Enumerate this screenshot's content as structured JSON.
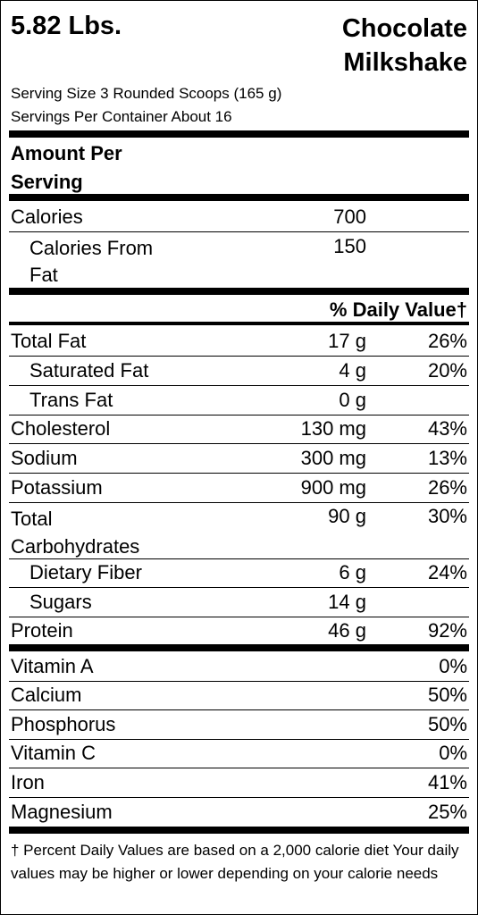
{
  "product": {
    "weight": "5.82 Lbs.",
    "name_line1": "Chocolate",
    "name_line2": "Milkshake"
  },
  "serving": {
    "size": "Serving Size 3 Rounded Scoops (165 g)",
    "per_container": "Servings Per Container About 16"
  },
  "amount_heading_line1": "Amount Per",
  "amount_heading_line2": "Serving",
  "calories": {
    "label": "Calories",
    "value": "700",
    "from_fat_line1": "Calories From",
    "from_fat_line2": "Fat",
    "from_fat_value": "150"
  },
  "daily_value_header": "% Daily Value†",
  "nutrients": [
    {
      "label": "Total Fat",
      "amount": "17 g",
      "dv": "26%"
    },
    {
      "label": "Saturated Fat",
      "amount": "4 g",
      "dv": "20%"
    },
    {
      "label": "Trans Fat",
      "amount": "0 g",
      "dv": ""
    },
    {
      "label": "Cholesterol",
      "amount": "130 mg",
      "dv": "43%"
    },
    {
      "label": "Sodium",
      "amount": "300 mg",
      "dv": "13%"
    },
    {
      "label": "Potassium",
      "amount": "900 mg",
      "dv": "26%"
    },
    {
      "label": "Total",
      "label_line2": "Carbohydrates",
      "amount": "90 g",
      "dv": "30%"
    },
    {
      "label": "Dietary Fiber",
      "amount": "6 g",
      "dv": "24%"
    },
    {
      "label": "Sugars",
      "amount": "14 g",
      "dv": ""
    },
    {
      "label": "Protein",
      "amount": "46 g",
      "dv": "92%"
    }
  ],
  "vitamins": [
    {
      "label": "Vitamin A",
      "dv": "0%"
    },
    {
      "label": "Calcium",
      "dv": "50%"
    },
    {
      "label": "Phosphorus",
      "dv": "50%"
    },
    {
      "label": "Vitamin C",
      "dv": "0%"
    },
    {
      "label": "Iron",
      "dv": "41%"
    },
    {
      "label": "Magnesium",
      "dv": "25%"
    }
  ],
  "footnote": "† Percent Daily Values are based on a 2,000 calorie diet Your daily values may be higher or lower depending on your calorie needs"
}
